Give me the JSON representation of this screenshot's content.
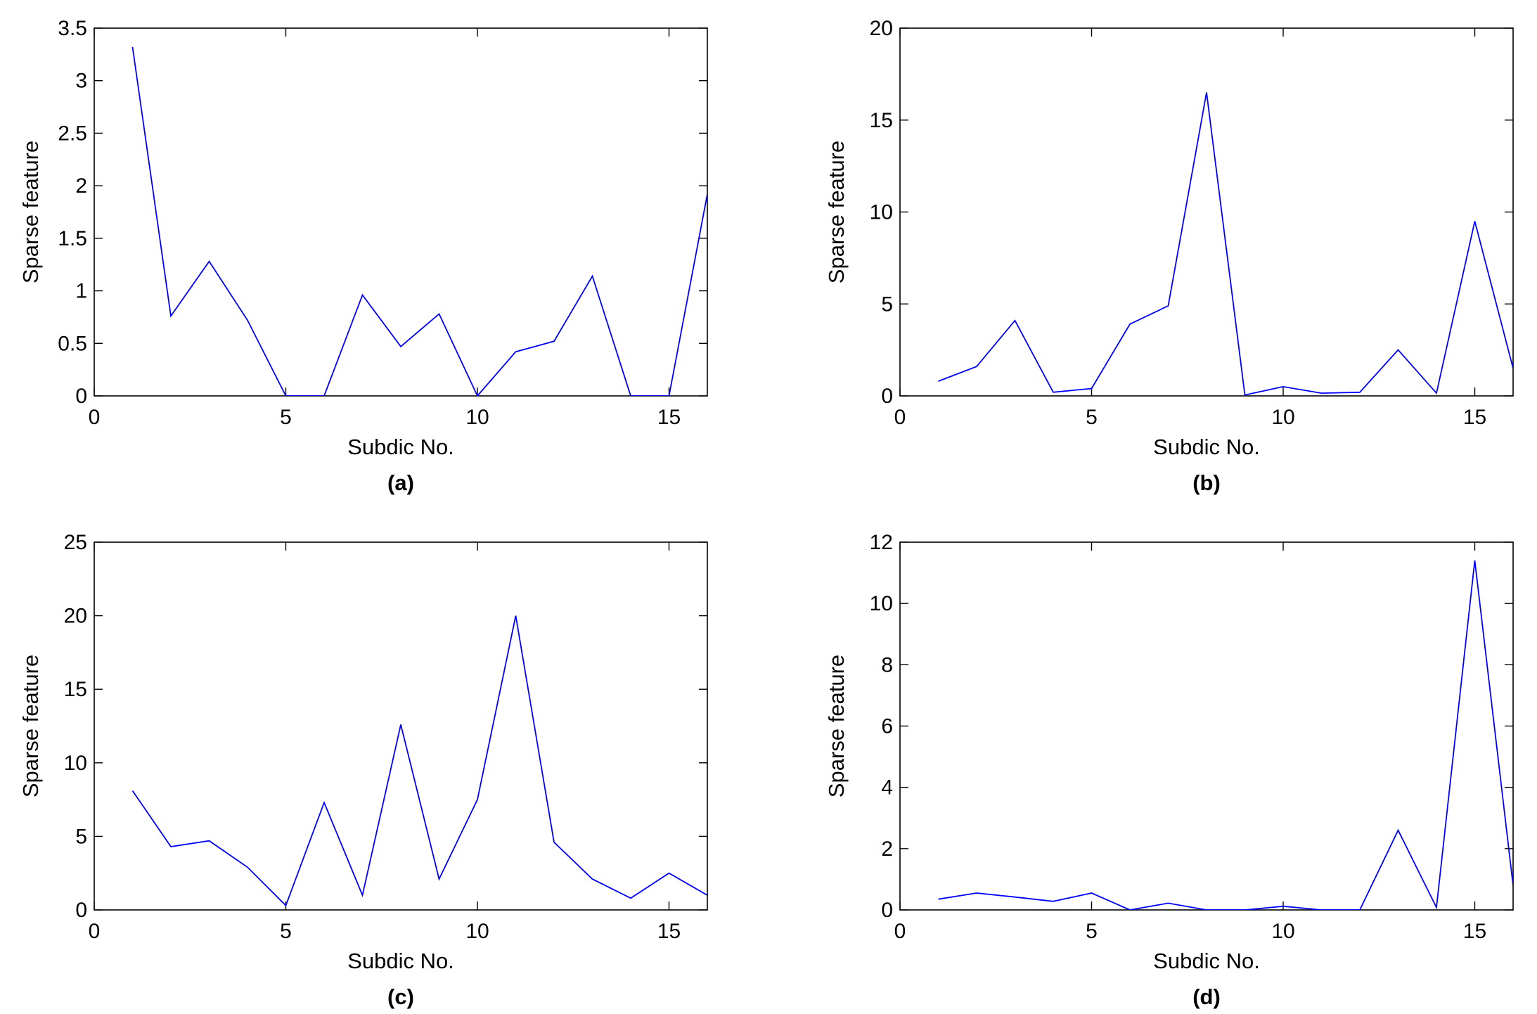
{
  "chart_data": [
    {
      "type": "line",
      "caption": "(a)",
      "xlabel": "Subdic No.",
      "ylabel": "Sparse feature",
      "xlim": [
        0,
        16
      ],
      "ylim": [
        0,
        3.5
      ],
      "xticks": [
        0,
        5,
        10,
        15
      ],
      "yticks": [
        0,
        0.5,
        1,
        1.5,
        2,
        2.5,
        3,
        3.5
      ],
      "ytick_labels": [
        "0",
        "0.5",
        "1",
        "1.5",
        "2",
        "2.5",
        "3",
        "3.5"
      ],
      "color": "#0000ff",
      "x": [
        1,
        2,
        3,
        4,
        5,
        6,
        7,
        8,
        9,
        10,
        11,
        12,
        13,
        14,
        15,
        16
      ],
      "values": [
        3.32,
        0.76,
        1.28,
        0.72,
        0.0,
        0.0,
        0.96,
        0.47,
        0.78,
        0.0,
        0.42,
        0.52,
        1.14,
        0.0,
        0.0,
        1.92
      ]
    },
    {
      "type": "line",
      "caption": "(b)",
      "xlabel": "Subdic No.",
      "ylabel": "Sparse feature",
      "xlim": [
        0,
        16
      ],
      "ylim": [
        0,
        20
      ],
      "xticks": [
        0,
        5,
        10,
        15
      ],
      "yticks": [
        0,
        5,
        10,
        15,
        20
      ],
      "ytick_labels": [
        "0",
        "5",
        "10",
        "15",
        "20"
      ],
      "color": "#0000ff",
      "x": [
        1,
        2,
        3,
        4,
        5,
        6,
        7,
        8,
        9,
        10,
        11,
        12,
        13,
        14,
        15,
        16
      ],
      "values": [
        0.8,
        1.6,
        4.1,
        0.2,
        0.4,
        3.9,
        4.9,
        16.5,
        0.05,
        0.5,
        0.15,
        0.2,
        2.5,
        0.15,
        9.5,
        1.5
      ]
    },
    {
      "type": "line",
      "caption": "(c)",
      "xlabel": "Subdic No.",
      "ylabel": "Sparse feature",
      "xlim": [
        0,
        16
      ],
      "ylim": [
        0,
        25
      ],
      "xticks": [
        0,
        5,
        10,
        15
      ],
      "yticks": [
        0,
        5,
        10,
        15,
        20,
        25
      ],
      "ytick_labels": [
        "0",
        "5",
        "10",
        "15",
        "20",
        "25"
      ],
      "color": "#0000ff",
      "x": [
        1,
        2,
        3,
        4,
        5,
        6,
        7,
        8,
        9,
        10,
        11,
        12,
        13,
        14,
        15,
        16
      ],
      "values": [
        8.1,
        4.3,
        4.7,
        2.9,
        0.3,
        7.3,
        1.0,
        12.6,
        2.1,
        7.5,
        20.0,
        4.6,
        2.1,
        0.8,
        2.5,
        1.0
      ]
    },
    {
      "type": "line",
      "caption": "(d)",
      "xlabel": "Subdic No.",
      "ylabel": "Sparse feature",
      "xlim": [
        0,
        16
      ],
      "ylim": [
        0,
        12
      ],
      "xticks": [
        0,
        5,
        10,
        15
      ],
      "yticks": [
        0,
        2,
        4,
        6,
        8,
        10,
        12
      ],
      "ytick_labels": [
        "0",
        "2",
        "4",
        "6",
        "8",
        "10",
        "12"
      ],
      "color": "#0000ff",
      "x": [
        1,
        2,
        3,
        4,
        5,
        6,
        7,
        8,
        9,
        10,
        11,
        12,
        13,
        14,
        15,
        16
      ],
      "values": [
        0.35,
        0.55,
        0.42,
        0.28,
        0.55,
        0.0,
        0.22,
        0.0,
        0.0,
        0.12,
        0.0,
        0.0,
        2.6,
        0.08,
        11.4,
        0.8
      ]
    }
  ]
}
